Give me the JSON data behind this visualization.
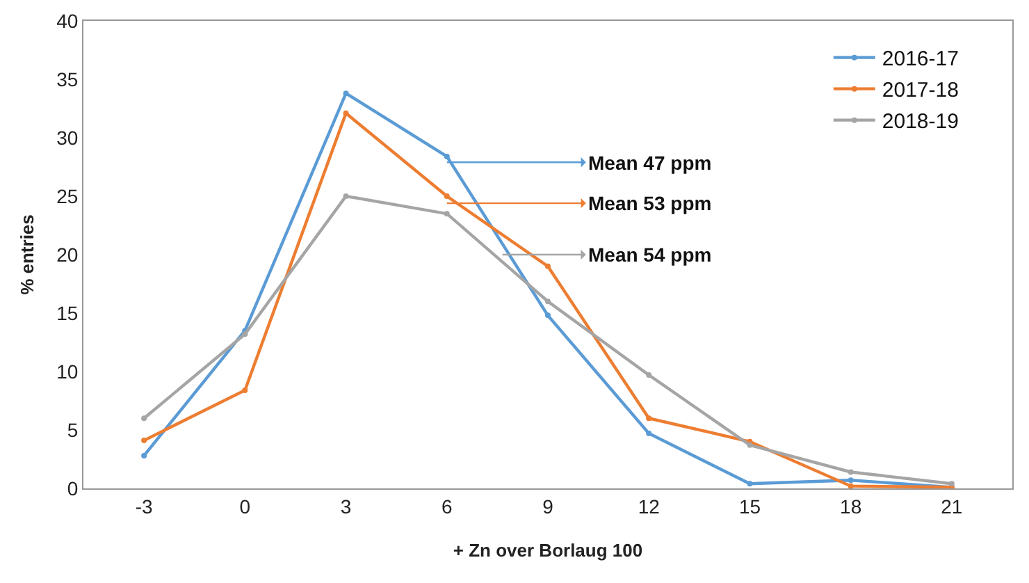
{
  "chart_data": {
    "type": "line",
    "xlabel": "+ Zn over Borlaug 100",
    "ylabel": "% entries",
    "categories": [
      "-3",
      "0",
      "3",
      "6",
      "9",
      "12",
      "15",
      "18",
      "21"
    ],
    "series": [
      {
        "name": "2016-17",
        "color": "#5b9bd5",
        "values": [
          2.8,
          13.5,
          33.8,
          28.4,
          14.8,
          4.7,
          0.4,
          0.7,
          0.1
        ]
      },
      {
        "name": "2017-18",
        "color": "#ed7d31",
        "values": [
          4.1,
          8.4,
          32.1,
          25.0,
          19.0,
          6.0,
          4.0,
          0.2,
          0.1
        ]
      },
      {
        "name": "2018-19",
        "color": "#a5a5a5",
        "values": [
          6.0,
          13.2,
          25.0,
          23.5,
          16.0,
          9.7,
          3.7,
          1.4,
          0.4
        ]
      }
    ],
    "ylim": [
      0,
      40
    ],
    "yticks": [
      0,
      5,
      10,
      15,
      20,
      25,
      30,
      35,
      40
    ],
    "grid": false,
    "legend": "top right",
    "marker": "circle",
    "line_style": "solid",
    "annotations": [
      {
        "text": "Mean 47 ppm",
        "x": "6",
        "y": 27.9
      },
      {
        "text": "Mean 53 ppm",
        "x": "6",
        "y": 24.4
      },
      "Mean 54 ppm"
    ]
  }
}
